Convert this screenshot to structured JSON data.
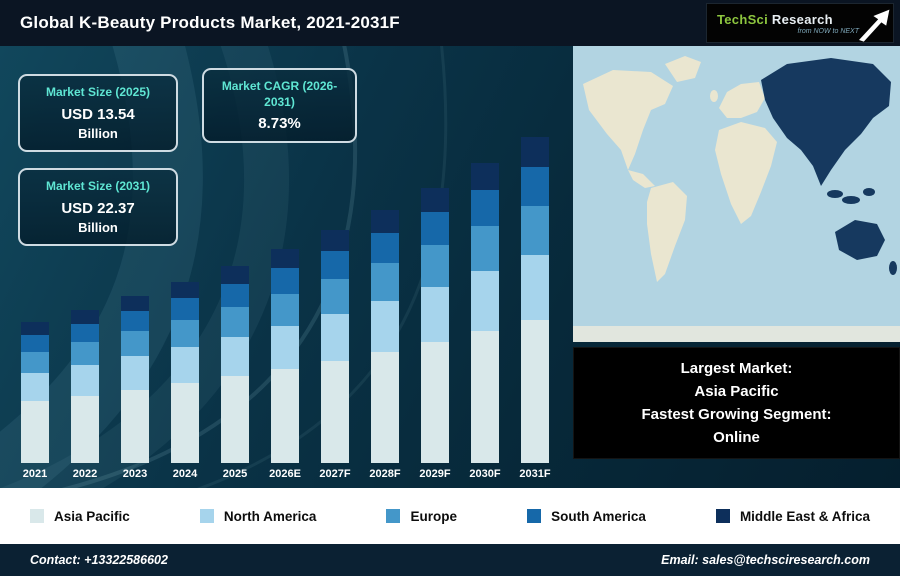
{
  "header": {
    "title": "Global K-Beauty Products Market, 2021-2031F",
    "logo": {
      "brand_primary": "TechSci",
      "brand_secondary": "Research",
      "tagline": "from NOW to NEXT"
    }
  },
  "stats": [
    {
      "label": "Market Size (2025)",
      "value": "USD 13.54",
      "unit": "Billion"
    },
    {
      "label": "Market CAGR (2026-2031)",
      "value": "8.73%",
      "unit": ""
    },
    {
      "label": "Market Size (2031)",
      "value": "USD 22.37",
      "unit": "Billion"
    }
  ],
  "chart_data": {
    "type": "bar",
    "stacked": true,
    "title": "Global K-Beauty Products Market, 2021-2031F",
    "unit": "USD Billion",
    "ymax": 23.5,
    "grid": false,
    "legend_position": "bottom",
    "categories": [
      "2021",
      "2022",
      "2023",
      "2024",
      "2025",
      "2026E",
      "2027F",
      "2028F",
      "2029F",
      "2030F",
      "2031F"
    ],
    "totals": [
      9.68,
      10.54,
      11.46,
      12.46,
      13.54,
      14.72,
      16.0,
      17.41,
      18.93,
      20.59,
      22.37
    ],
    "series": [
      {
        "name": "Asia Pacific",
        "color": "#d9e8ea",
        "values": [
          4.26,
          4.64,
          5.04,
          5.48,
          5.96,
          6.48,
          7.04,
          7.66,
          8.33,
          9.06,
          9.85
        ]
      },
      {
        "name": "North America",
        "color": "#a6d4ec",
        "values": [
          1.94,
          2.11,
          2.29,
          2.49,
          2.71,
          2.94,
          3.2,
          3.48,
          3.79,
          4.12,
          4.47
        ]
      },
      {
        "name": "Europe",
        "color": "#4497c9",
        "values": [
          1.45,
          1.58,
          1.72,
          1.87,
          2.03,
          2.21,
          2.4,
          2.61,
          2.84,
          3.09,
          3.36
        ]
      },
      {
        "name": "South America",
        "color": "#1668a9",
        "values": [
          1.16,
          1.26,
          1.38,
          1.5,
          1.62,
          1.77,
          1.92,
          2.09,
          2.27,
          2.47,
          2.68
        ]
      },
      {
        "name": "Middle East & Africa",
        "color": "#0d2f5b",
        "values": [
          0.87,
          0.95,
          1.03,
          1.12,
          1.22,
          1.32,
          1.44,
          1.57,
          1.7,
          1.85,
          2.01
        ]
      }
    ]
  },
  "map": {
    "ocean_color": "#b2d4e2",
    "land_color": "#eae6d0",
    "highlight_color": "#16395f",
    "highlighted_region": "Asia Pacific"
  },
  "map_callout": {
    "line1": "Largest Market:",
    "line2": "Asia Pacific",
    "line3": "Fastest Growing Segment:",
    "line4": "Online"
  },
  "footer": {
    "contact": "Contact: +13322586602",
    "email": "Email: sales@techsciresearch.com"
  }
}
